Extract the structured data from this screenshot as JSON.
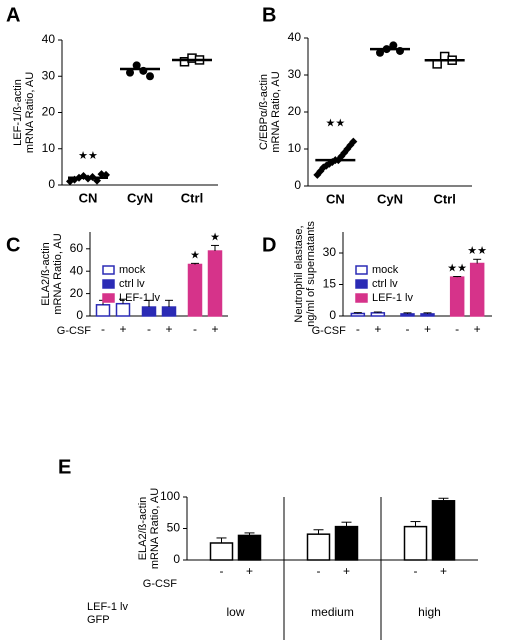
{
  "chart_data": [
    {
      "type": "dot",
      "panel": "A",
      "ylabel": [
        "LEF-1/ß-actin",
        "mRNA Ratio, AU"
      ],
      "categories": [
        "CN",
        "CyN",
        "Ctrl"
      ],
      "points": [
        [
          1,
          1.5,
          2,
          2.5,
          1.8,
          2.2,
          1.2,
          3,
          2.8
        ],
        [
          31,
          33,
          31.5,
          30
        ],
        [
          34,
          35,
          34.5
        ]
      ],
      "means": [
        2,
        32,
        34.5
      ],
      "markers": [
        "diamond",
        "circle",
        "square"
      ],
      "color": "#000000",
      "significance": [
        "★★",
        null,
        null
      ],
      "ylim": [
        0,
        40
      ],
      "yticks": [
        0,
        10,
        20,
        30,
        40
      ]
    },
    {
      "type": "dot",
      "panel": "B",
      "ylabel": [
        "C/EBPα/ß-actin",
        "mRNA Ratio, AU"
      ],
      "categories": [
        "CN",
        "CyN",
        "Ctrl"
      ],
      "points": [
        [
          3,
          4,
          5,
          5.5,
          6,
          6.5,
          7,
          7,
          8,
          9,
          10,
          11,
          12
        ],
        [
          36,
          37,
          38,
          36.5
        ],
        [
          33,
          35,
          34
        ]
      ],
      "means": [
        7,
        37,
        34
      ],
      "markers": [
        "diamond",
        "circle",
        "square"
      ],
      "color": "#000000",
      "significance": [
        "★★",
        null,
        null
      ],
      "ylim": [
        0,
        40
      ],
      "yticks": [
        0,
        10,
        20,
        30,
        40
      ]
    },
    {
      "type": "bar",
      "panel": "C",
      "ylabel": [
        "ELA2/ß-actin",
        "mRNA Ratio, AU"
      ],
      "categories": [
        "-",
        "+"
      ],
      "xlabel": "G-CSF",
      "series": [
        {
          "name": "mock",
          "color": "#ffffff",
          "edge": "#2b2bb5",
          "values": [
            10,
            11
          ],
          "errors": [
            4,
            4
          ]
        },
        {
          "name": "ctrl lv",
          "color": "#2b2bb5",
          "edge": "#2b2bb5",
          "values": [
            8,
            8
          ],
          "errors": [
            6,
            6
          ]
        },
        {
          "name": "LEF-1 lv",
          "color": "#d6338a",
          "edge": "#d6338a",
          "values": [
            46,
            58
          ],
          "errors": [
            1,
            5
          ],
          "annotations": [
            "★",
            "★"
          ]
        }
      ],
      "ylim": [
        0,
        75
      ],
      "yticks": [
        0,
        20,
        40,
        60
      ],
      "legend": "top-left"
    },
    {
      "type": "bar",
      "panel": "D",
      "ylabel": [
        "Neutrophil elastase,",
        "ng/ml of supernatants"
      ],
      "categories": [
        "-",
        "+"
      ],
      "xlabel": "G-CSF",
      "series": [
        {
          "name": "mock",
          "color": "#ffffff",
          "edge": "#2b2bb5",
          "values": [
            1.2,
            1.5
          ],
          "errors": [
            0.4,
            0.4
          ]
        },
        {
          "name": "ctrl lv",
          "color": "#2b2bb5",
          "edge": "#2b2bb5",
          "values": [
            1,
            1
          ],
          "errors": [
            0.5,
            0.5
          ]
        },
        {
          "name": "LEF-1 lv",
          "color": "#d6338a",
          "edge": "#d6338a",
          "values": [
            18.5,
            25
          ],
          "errors": [
            0.3,
            2
          ],
          "annotations": [
            "★★",
            "★★"
          ]
        }
      ],
      "ylim": [
        0,
        40
      ],
      "yticks": [
        0,
        15,
        30
      ],
      "legend": "top-left"
    },
    {
      "type": "grouped_bar",
      "panel": "E",
      "ylabel": [
        "ELA2/ß-actin",
        "mRNA Ratio, AU"
      ],
      "categories": [
        "low",
        "medium",
        "high"
      ],
      "category_label": [
        "LEF-1 lv",
        "GFP"
      ],
      "xlabel": "G-CSF",
      "series": [
        {
          "name": "-",
          "color": "#ffffff",
          "edge": "#000000",
          "values": [
            27,
            41,
            53
          ],
          "errors": [
            8,
            7,
            8
          ]
        },
        {
          "name": "+",
          "color": "#000000",
          "edge": "#000000",
          "values": [
            39,
            53,
            94
          ],
          "errors": [
            4,
            7,
            4
          ]
        }
      ],
      "ylim": [
        0,
        100
      ],
      "yticks": [
        0,
        50,
        100
      ]
    }
  ]
}
